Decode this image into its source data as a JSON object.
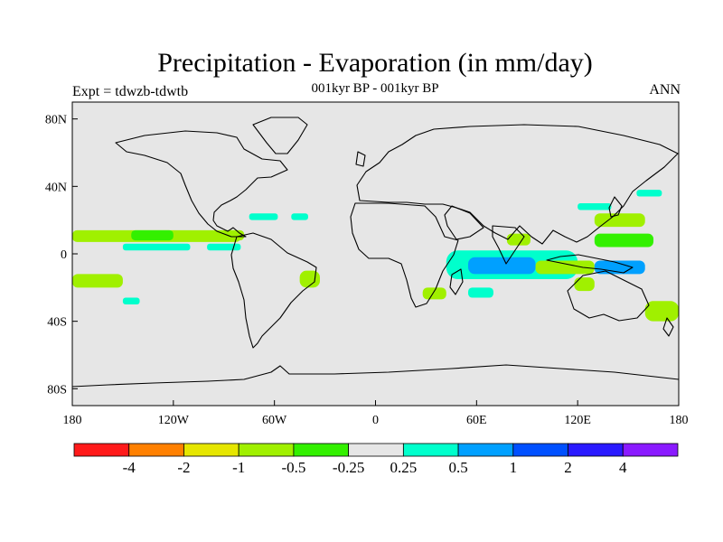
{
  "title": "Precipitation - Evaporation (in mm/day)",
  "subtitle": "001kyr BP - 001kyr BP",
  "left_label": "Expt = tdwzb-tdwtb",
  "right_label": "ANN",
  "chart_data": {
    "type": "heatmap",
    "projection": "cylindrical-equidistant",
    "xlim": [
      -180,
      180
    ],
    "ylim": [
      -90,
      90
    ],
    "x_ticks": [
      "180",
      "120W",
      "60W",
      "0",
      "60E",
      "120E",
      "180"
    ],
    "x_tick_values": [
      -180,
      -120,
      -60,
      0,
      60,
      120,
      180
    ],
    "y_ticks": [
      "80N",
      "40N",
      "0",
      "40S",
      "80S"
    ],
    "y_tick_values": [
      80,
      40,
      0,
      -40,
      -80
    ],
    "background_color": "#e6e6e6",
    "colorbar": {
      "colors": [
        "#ff1a1a",
        "#ff8000",
        "#e6e600",
        "#a0f000",
        "#33f000",
        "#e6e6e6",
        "#00ffcc",
        "#00a0ff",
        "#0050ff",
        "#2a1aff",
        "#8a1aff"
      ],
      "labels": [
        "-4",
        "-2",
        "-1",
        "-0.5",
        "-0.25",
        "0.25",
        "0.5",
        "1",
        "2",
        "4"
      ]
    },
    "regions": [
      {
        "name": "east-pacific-itcz",
        "color": "#a0f000",
        "lon": [
          -180,
          -80
        ],
        "lat": [
          7,
          14
        ]
      },
      {
        "name": "central-pacific-band",
        "color": "#33f000",
        "lon": [
          -145,
          -120
        ],
        "lat": [
          8,
          14
        ]
      },
      {
        "name": "central-america",
        "color": "#a0f000",
        "lon": [
          -92,
          -78
        ],
        "lat": [
          8,
          14
        ]
      },
      {
        "name": "east-pacific-south",
        "color": "#00ffcc",
        "lon": [
          -150,
          -110
        ],
        "lat": [
          2,
          6
        ]
      },
      {
        "name": "panama-coast",
        "color": "#00ffcc",
        "lon": [
          -100,
          -80
        ],
        "lat": [
          2,
          6
        ]
      },
      {
        "name": "caribbean",
        "color": "#00ffcc",
        "lon": [
          -75,
          -58
        ],
        "lat": [
          20,
          24
        ]
      },
      {
        "name": "north-atlantic-east",
        "color": "#00ffcc",
        "lon": [
          -50,
          -40
        ],
        "lat": [
          20,
          24
        ]
      },
      {
        "name": "brazil-east",
        "color": "#a0f000",
        "lon": [
          -45,
          -33
        ],
        "lat": [
          -20,
          -10
        ]
      },
      {
        "name": "south-pacific-west",
        "color": "#a0f000",
        "lon": [
          -180,
          -150
        ],
        "lat": [
          -20,
          -12
        ]
      },
      {
        "name": "south-pacific-patch",
        "color": "#00ffcc",
        "lon": [
          -150,
          -140
        ],
        "lat": [
          -30,
          -26
        ]
      },
      {
        "name": "mozambique-channel",
        "color": "#a0f000",
        "lon": [
          28,
          42
        ],
        "lat": [
          -27,
          -20
        ]
      },
      {
        "name": "indian-ocean-broad",
        "color": "#00ffcc",
        "lon": [
          42,
          120
        ],
        "lat": [
          -15,
          2
        ]
      },
      {
        "name": "indian-ocean-core",
        "color": "#00a0ff",
        "lon": [
          55,
          95
        ],
        "lat": [
          -12,
          -2
        ]
      },
      {
        "name": "indian-ocean-south",
        "color": "#00ffcc",
        "lon": [
          55,
          70
        ],
        "lat": [
          -26,
          -20
        ]
      },
      {
        "name": "indonesia",
        "color": "#a0f000",
        "lon": [
          95,
          130
        ],
        "lat": [
          -12,
          -4
        ]
      },
      {
        "name": "australia-north",
        "color": "#a0f000",
        "lon": [
          118,
          130
        ],
        "lat": [
          -22,
          -14
        ]
      },
      {
        "name": "west-pacific-south",
        "color": "#00a0ff",
        "lon": [
          130,
          160
        ],
        "lat": [
          -12,
          -4
        ]
      },
      {
        "name": "south-pacific-east",
        "color": "#a0f000",
        "lon": [
          160,
          180
        ],
        "lat": [
          -40,
          -28
        ]
      },
      {
        "name": "west-pacific-north",
        "color": "#a0f000",
        "lon": [
          130,
          160
        ],
        "lat": [
          16,
          24
        ]
      },
      {
        "name": "west-pacific-band",
        "color": "#33f000",
        "lon": [
          130,
          165
        ],
        "lat": [
          4,
          12
        ]
      },
      {
        "name": "philippine-sea",
        "color": "#00ffcc",
        "lon": [
          120,
          140
        ],
        "lat": [
          26,
          30
        ]
      },
      {
        "name": "north-pacific-patch",
        "color": "#00ffcc",
        "lon": [
          155,
          170
        ],
        "lat": [
          34,
          38
        ]
      },
      {
        "name": "bay-of-bengal",
        "color": "#a0f000",
        "lon": [
          78,
          92
        ],
        "lat": [
          5,
          12
        ]
      }
    ]
  }
}
